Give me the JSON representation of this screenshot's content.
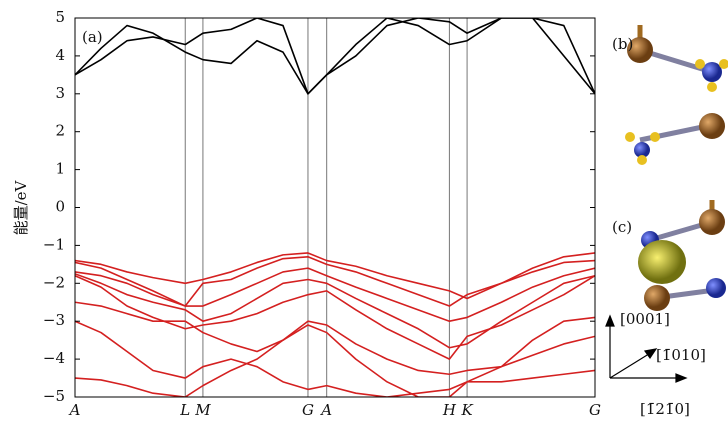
{
  "chart_data": {
    "type": "line",
    "ylabel": "能量/eV",
    "annotation": "(a)",
    "x": [
      0,
      0.25,
      0.5,
      0.75,
      1.06,
      1.23,
      1.5,
      1.75,
      2.0,
      2.24,
      2.42,
      2.7,
      3.0,
      3.3,
      3.6,
      3.77,
      4.1,
      4.4,
      4.7,
      5.0
    ],
    "xlim": [
      0,
      5.0
    ],
    "xticks": [
      {
        "value": 0,
        "label": "A"
      },
      {
        "value": 1.06,
        "label": "L"
      },
      {
        "value": 1.23,
        "label": "M"
      },
      {
        "value": 2.24,
        "label": "G"
      },
      {
        "value": 2.42,
        "label": "A"
      },
      {
        "value": 3.6,
        "label": "H"
      },
      {
        "value": 3.77,
        "label": "K"
      },
      {
        "value": 5.0,
        "label": "G"
      }
    ],
    "ylim": [
      -5,
      5
    ],
    "yticks": [
      {
        "value": -5,
        "label": "−5"
      },
      {
        "value": -4,
        "label": "−4"
      },
      {
        "value": -3,
        "label": "−3"
      },
      {
        "value": -2,
        "label": "−2"
      },
      {
        "value": -1,
        "label": "−1"
      },
      0,
      1,
      2,
      3,
      4,
      5
    ],
    "series": [
      {
        "color": "#000000",
        "values": [
          3.5,
          4.2,
          4.8,
          4.6,
          4.1,
          3.9,
          3.8,
          4.4,
          4.1,
          3.0,
          3.5,
          4.3,
          5.0,
          4.8,
          4.3,
          4.4,
          5.0,
          5.0,
          4.0,
          3.0
        ]
      },
      {
        "color": "#000000",
        "values": [
          3.5,
          3.9,
          4.4,
          4.5,
          4.3,
          4.6,
          4.7,
          5.0,
          4.8,
          3.0,
          3.5,
          4.0,
          4.8,
          5.0,
          4.9,
          4.6,
          5.0,
          5.0,
          4.8,
          3.0
        ]
      },
      {
        "color": "#d42020",
        "values": [
          -1.4,
          -1.5,
          -1.7,
          -1.85,
          -2.0,
          -1.9,
          -1.7,
          -1.45,
          -1.25,
          -1.2,
          -1.4,
          -1.55,
          -1.8,
          -2.0,
          -2.2,
          -2.4,
          -2.0,
          -1.6,
          -1.3,
          -1.2
        ]
      },
      {
        "color": "#d42020",
        "values": [
          -1.45,
          -1.6,
          -1.9,
          -2.2,
          -2.6,
          -2.0,
          -1.9,
          -1.6,
          -1.35,
          -1.3,
          -1.5,
          -1.7,
          -2.0,
          -2.3,
          -2.6,
          -2.3,
          -2.0,
          -1.7,
          -1.45,
          -1.4
        ]
      },
      {
        "color": "#d42020",
        "values": [
          -1.7,
          -1.8,
          -2.0,
          -2.3,
          -2.6,
          -2.6,
          -2.3,
          -2.0,
          -1.7,
          -1.6,
          -1.8,
          -2.1,
          -2.4,
          -2.7,
          -3.0,
          -2.9,
          -2.5,
          -2.1,
          -1.8,
          -1.6
        ]
      },
      {
        "color": "#d42020",
        "values": [
          -1.75,
          -2.0,
          -2.3,
          -2.5,
          -2.7,
          -3.0,
          -2.8,
          -2.4,
          -2.0,
          -1.9,
          -2.0,
          -2.4,
          -2.8,
          -3.2,
          -3.7,
          -3.6,
          -3.0,
          -2.5,
          -2.0,
          -1.8
        ]
      },
      {
        "color": "#d42020",
        "values": [
          -1.8,
          -2.1,
          -2.6,
          -2.9,
          -3.2,
          -3.1,
          -3.0,
          -2.8,
          -2.5,
          -2.3,
          -2.2,
          -2.7,
          -3.2,
          -3.6,
          -4.0,
          -3.4,
          -3.1,
          -2.7,
          -2.3,
          -1.8
        ]
      },
      {
        "color": "#d42020",
        "values": [
          -2.5,
          -2.6,
          -2.8,
          -3.0,
          -3.0,
          -3.3,
          -3.6,
          -3.8,
          -3.5,
          -3.0,
          -3.1,
          -3.6,
          -4.0,
          -4.3,
          -4.4,
          -4.3,
          -4.2,
          -3.5,
          -3.0,
          -2.9
        ]
      },
      {
        "color": "#d42020",
        "values": [
          -4.5,
          -4.55,
          -4.7,
          -4.9,
          -5.0,
          -4.7,
          -4.3,
          -4.0,
          -3.5,
          -3.1,
          -3.3,
          -4.0,
          -4.6,
          -5.0,
          -5.0,
          -4.6,
          -4.2,
          -3.9,
          -3.6,
          -3.4
        ]
      },
      {
        "color": "#d42020",
        "values": [
          -3.0,
          -3.3,
          -3.8,
          -4.3,
          -4.5,
          -4.2,
          -4.0,
          -4.2,
          -4.6,
          -4.8,
          -4.7,
          -4.9,
          -5.0,
          -4.9,
          -4.8,
          -4.6,
          -4.6,
          -4.5,
          -4.4,
          -4.3
        ]
      }
    ]
  },
  "side_labels": {
    "b": "(b)",
    "c": "(c)",
    "axis_z": "[0001]",
    "axis_x": "[1̄010]",
    "axis_y": "[1̄21̄0]"
  }
}
